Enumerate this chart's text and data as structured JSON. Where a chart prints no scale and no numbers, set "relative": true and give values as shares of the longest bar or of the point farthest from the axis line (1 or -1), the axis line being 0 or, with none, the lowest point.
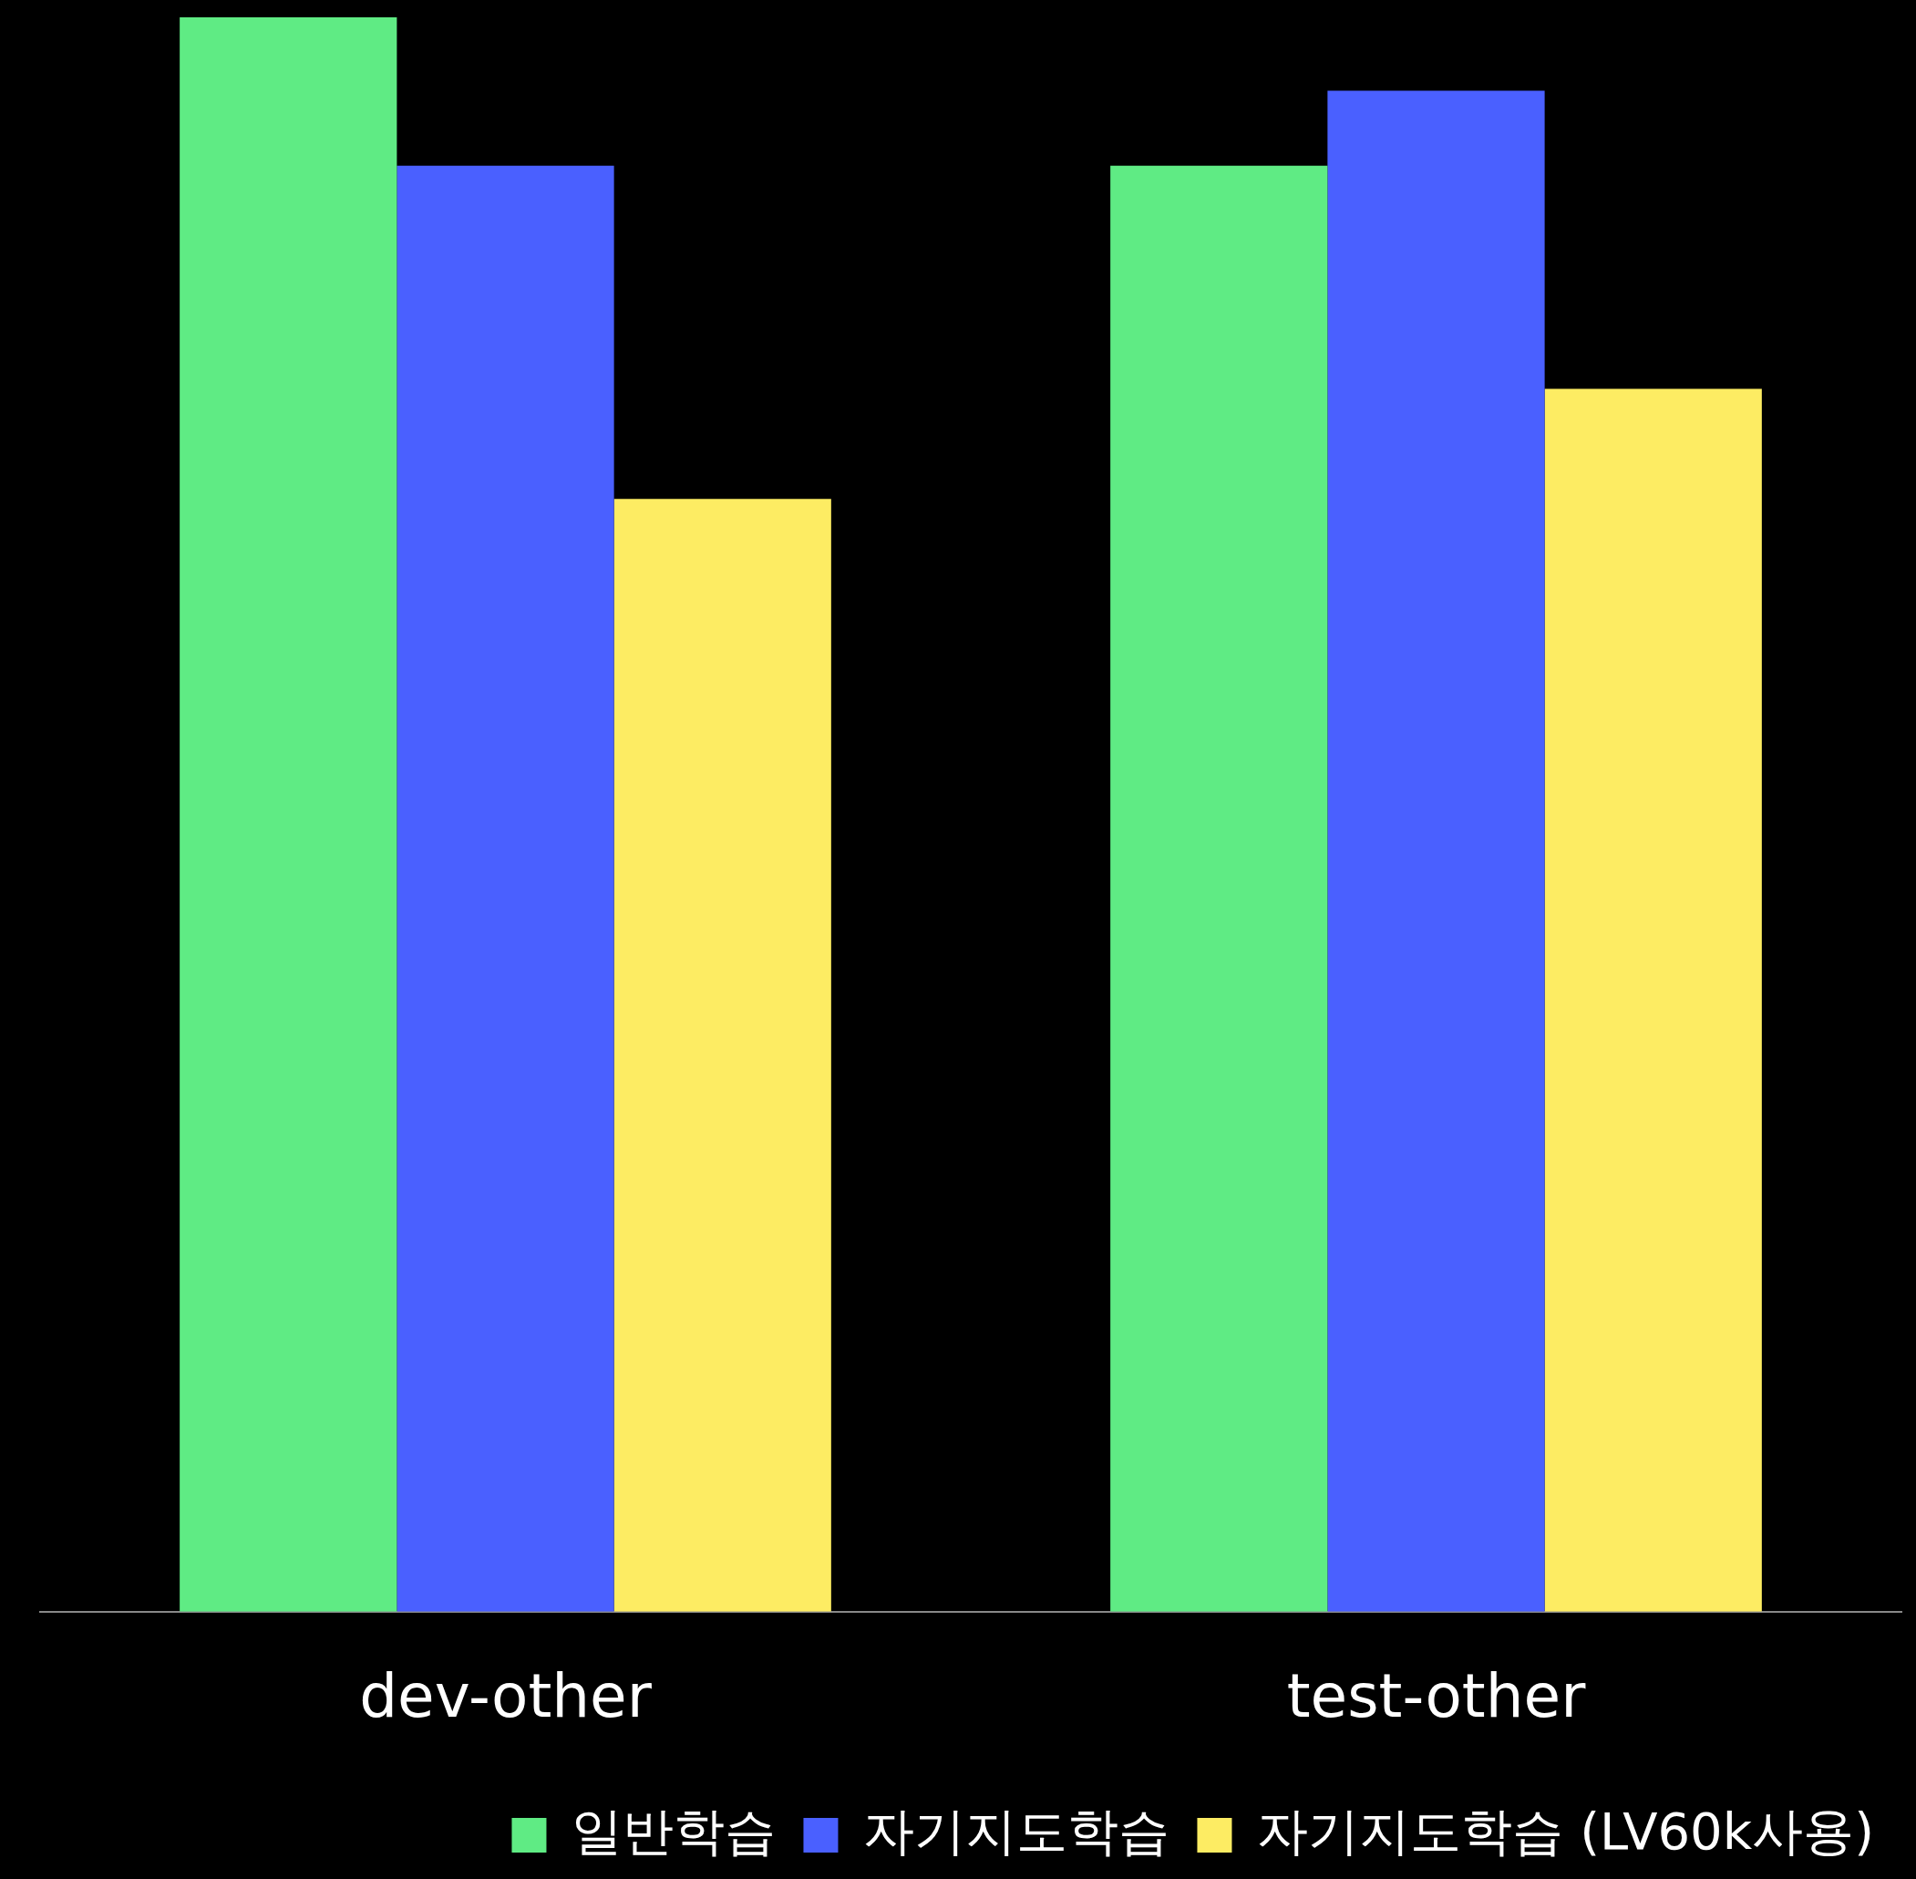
{
  "chart_data": {
    "type": "bar",
    "relative": true,
    "legend": "bottom right",
    "categories": [
      "dev-other",
      "test-other"
    ],
    "series": [
      {
        "name": "일반학습",
        "color": "#5feb84",
        "values": [
          1,
          0.907
        ]
      },
      {
        "name": "자기지도학습",
        "color": "#4a60ff",
        "values": [
          0.907,
          0.954
        ]
      },
      {
        "name": "자기지도학습 (LV60k사용)",
        "color": "#fdec63",
        "values": [
          0.698,
          0.767
        ]
      }
    ]
  }
}
